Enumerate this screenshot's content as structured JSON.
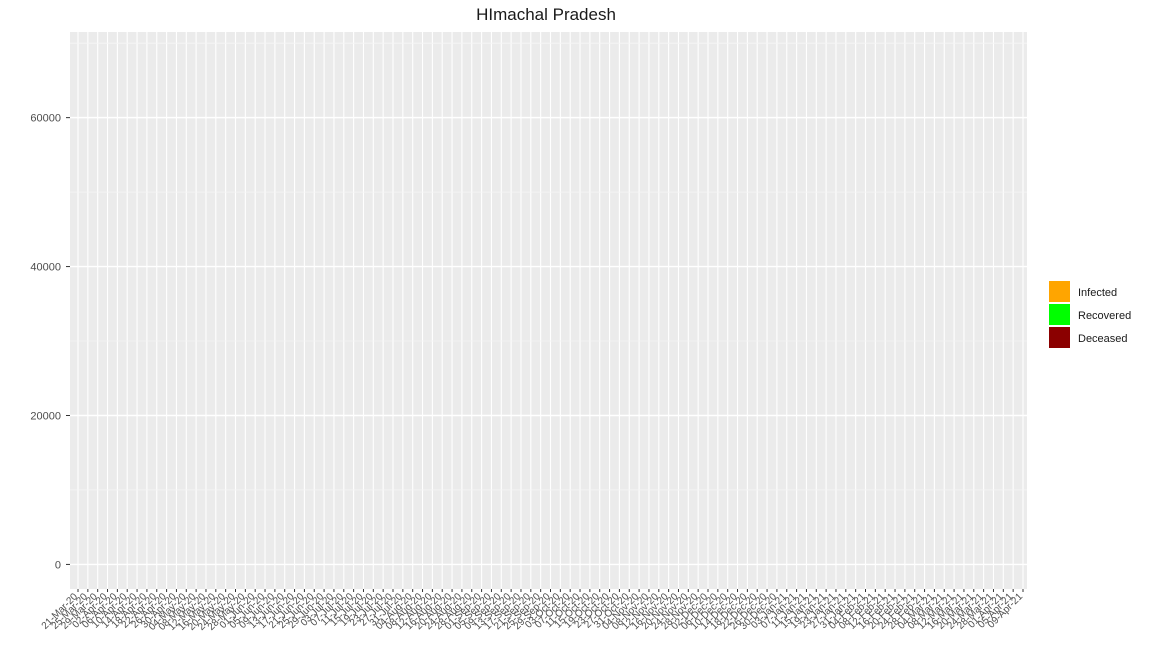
{
  "chart_data": {
    "type": "area",
    "stacked": true,
    "title": "HImachal Pradesh",
    "xlabel": "",
    "ylabel": "",
    "ylim": [
      -3300,
      71500
    ],
    "yticks": [
      0,
      20000,
      40000,
      60000
    ],
    "ytick_labels": [
      "0",
      "20000",
      "40000",
      "60000"
    ],
    "grid": true,
    "legend_position": "right",
    "xtick_labels": [
      "21-Mar-20",
      "25-Mar-20",
      "29-Mar-20",
      "02-Apr-20",
      "06-Apr-20",
      "10-Apr-20",
      "14-Apr-20",
      "18-Apr-20",
      "22-Apr-20",
      "26-Apr-20",
      "30-Apr-20",
      "04-May-20",
      "08-May-20",
      "12-May-20",
      "16-May-20",
      "20-May-20",
      "24-May-20",
      "28-May-20",
      "01-Jun-20",
      "05-Jun-20",
      "09-Jun-20",
      "13-Jun-20",
      "17-Jun-20",
      "21-Jun-20",
      "25-Jun-20",
      "29-Jun-20",
      "03-Jul-20",
      "07-Jul-20",
      "11-Jul-20",
      "15-Jul-20",
      "19-Jul-20",
      "23-Jul-20",
      "27-Jul-20",
      "31-Jul-20",
      "04-Aug-20",
      "08-Aug-20",
      "12-Aug-20",
      "16-Aug-20",
      "20-Aug-20",
      "24-Aug-20",
      "28-Aug-20",
      "01-Sep-20",
      "05-Sep-20",
      "09-Sep-20",
      "13-Sep-20",
      "17-Sep-20",
      "21-Sep-20",
      "25-Sep-20",
      "29-Sep-20",
      "03-Oct-20",
      "07-Oct-20",
      "11-Oct-20",
      "15-Oct-20",
      "19-Oct-20",
      "23-Oct-20",
      "27-Oct-20",
      "31-Oct-20",
      "04-Nov-20",
      "08-Nov-20",
      "12-Nov-20",
      "16-Nov-20",
      "20-Nov-20",
      "24-Nov-20",
      "28-Nov-20",
      "02-Dec-20",
      "06-Dec-20",
      "10-Dec-20",
      "14-Dec-20",
      "18-Dec-20",
      "22-Dec-20",
      "26-Dec-20",
      "30-Dec-20",
      "03-Jan-21",
      "07-Jan-21",
      "11-Jan-21",
      "15-Jan-21",
      "19-Jan-21",
      "23-Jan-21",
      "27-Jan-21",
      "31-Jan-21",
      "04-Feb-21",
      "08-Feb-21",
      "12-Feb-21",
      "16-Feb-21",
      "20-Feb-21",
      "24-Feb-21",
      "28-Feb-21",
      "04-Mar-21",
      "08-Mar-21",
      "12-Mar-21",
      "16-Mar-21",
      "20-Mar-21",
      "24-Mar-21",
      "28-Mar-21",
      "01-Apr-21",
      "05-Apr-21",
      "09-Apr-21"
    ],
    "dates": [
      "21-Mar-20",
      "25-Mar-20",
      "29-Mar-20",
      "02-Apr-20",
      "06-Apr-20",
      "10-Apr-20",
      "14-Apr-20",
      "18-Apr-20",
      "22-Apr-20",
      "26-Apr-20",
      "30-Apr-20",
      "04-May-20",
      "08-May-20",
      "12-May-20",
      "16-May-20",
      "20-May-20",
      "24-May-20",
      "28-May-20",
      "01-Jun-20",
      "05-Jun-20",
      "09-Jun-20",
      "13-Jun-20",
      "17-Jun-20",
      "21-Jun-20",
      "25-Jun-20",
      "29-Jun-20",
      "03-Jul-20",
      "07-Jul-20",
      "11-Jul-20",
      "15-Jul-20",
      "19-Jul-20",
      "23-Jul-20",
      "27-Jul-20",
      "31-Jul-20",
      "04-Aug-20",
      "08-Aug-20",
      "12-Aug-20",
      "16-Aug-20",
      "20-Aug-20",
      "24-Aug-20",
      "28-Aug-20",
      "01-Sep-20",
      "05-Sep-20",
      "09-Sep-20",
      "13-Sep-20",
      "17-Sep-20",
      "21-Sep-20",
      "25-Sep-20",
      "29-Sep-20",
      "03-Oct-20",
      "07-Oct-20",
      "11-Oct-20",
      "15-Oct-20",
      "19-Oct-20",
      "23-Oct-20",
      "27-Oct-20",
      "31-Oct-20",
      "04-Nov-20",
      "08-Nov-20",
      "12-Nov-20",
      "16-Nov-20",
      "20-Nov-20",
      "24-Nov-20",
      "28-Nov-20",
      "02-Dec-20",
      "06-Dec-20",
      "10-Dec-20",
      "14-Dec-20",
      "18-Dec-20",
      "22-Dec-20",
      "26-Dec-20",
      "30-Dec-20",
      "03-Jan-21",
      "07-Jan-21",
      "11-Jan-21",
      "15-Jan-21",
      "19-Jan-21",
      "23-Jan-21",
      "27-Jan-21",
      "31-Jan-21",
      "04-Feb-21",
      "08-Feb-21",
      "12-Feb-21",
      "16-Feb-21",
      "20-Feb-21",
      "24-Feb-21",
      "28-Feb-21",
      "04-Mar-21",
      "08-Mar-21",
      "12-Mar-21",
      "16-Mar-21",
      "20-Mar-21",
      "24-Mar-21",
      "28-Mar-21",
      "01-Apr-21",
      "05-Apr-21",
      "09-Apr-21"
    ],
    "series": [
      {
        "name": "Deceased",
        "color": "#8B0000",
        "values": [
          0,
          0,
          0,
          0,
          0,
          0,
          0,
          0,
          0,
          0,
          0,
          0,
          0,
          0,
          0,
          0,
          0,
          0,
          0,
          0,
          0,
          0,
          0,
          0,
          0,
          0,
          0,
          0,
          0,
          0,
          0,
          0,
          0,
          0,
          0,
          0,
          0,
          0,
          0,
          0,
          0,
          0,
          0,
          0,
          0,
          0,
          0,
          0,
          0,
          0,
          0,
          0,
          0,
          0,
          0,
          0,
          0,
          0,
          0,
          0,
          0,
          0,
          0,
          0,
          0,
          0,
          0,
          0,
          0,
          0,
          0,
          0,
          0,
          0,
          0,
          0,
          0,
          0,
          0,
          0,
          0,
          0,
          0,
          0,
          0,
          0,
          0,
          0,
          0,
          0,
          0,
          0,
          0,
          0,
          0,
          0,
          0
        ]
      },
      {
        "name": "Recovered",
        "color": "#00FF00",
        "values": [
          0,
          0,
          0,
          0,
          0,
          0,
          0,
          0,
          0,
          0,
          0,
          0,
          0,
          0,
          0,
          0,
          0,
          0,
          0,
          0,
          0,
          0,
          0,
          0,
          0,
          0,
          0,
          0,
          0,
          0,
          0,
          0,
          0,
          0,
          0,
          0,
          0,
          0,
          0,
          0,
          0,
          0,
          0,
          0,
          0,
          0,
          0,
          0,
          0,
          0,
          0,
          0,
          0,
          0,
          0,
          0,
          0,
          0,
          0,
          0,
          0,
          0,
          0,
          0,
          0,
          0,
          0,
          0,
          0,
          0,
          0,
          0,
          0,
          0,
          0,
          0,
          0,
          0,
          0,
          0,
          0,
          0,
          0,
          0,
          0,
          0,
          0,
          0,
          0,
          0,
          0,
          0,
          0,
          0,
          0,
          0,
          0
        ]
      },
      {
        "name": "Infected",
        "color": "#FFA500",
        "values": [
          0,
          0,
          0,
          0,
          0,
          0,
          0,
          0,
          0,
          0,
          0,
          0,
          0,
          0,
          0,
          0,
          0,
          0,
          0,
          0,
          0,
          0,
          0,
          0,
          0,
          0,
          0,
          0,
          0,
          0,
          0,
          0,
          0,
          0,
          0,
          0,
          0,
          0,
          0,
          0,
          0,
          0,
          0,
          0,
          0,
          0,
          0,
          0,
          0,
          0,
          0,
          0,
          0,
          0,
          0,
          0,
          0,
          0,
          0,
          0,
          0,
          0,
          0,
          0,
          0,
          0,
          0,
          0,
          0,
          0,
          0,
          0,
          0,
          0,
          0,
          0,
          0,
          0,
          0,
          0,
          0,
          0,
          0,
          0,
          0,
          0,
          0,
          0,
          0,
          0,
          0,
          0,
          0,
          0,
          0,
          0,
          0
        ]
      }
    ],
    "legend": [
      {
        "label": "Infected",
        "color": "#FFA500"
      },
      {
        "label": "Recovered",
        "color": "#00FF00"
      },
      {
        "label": "Deceased",
        "color": "#8B0000"
      }
    ]
  }
}
